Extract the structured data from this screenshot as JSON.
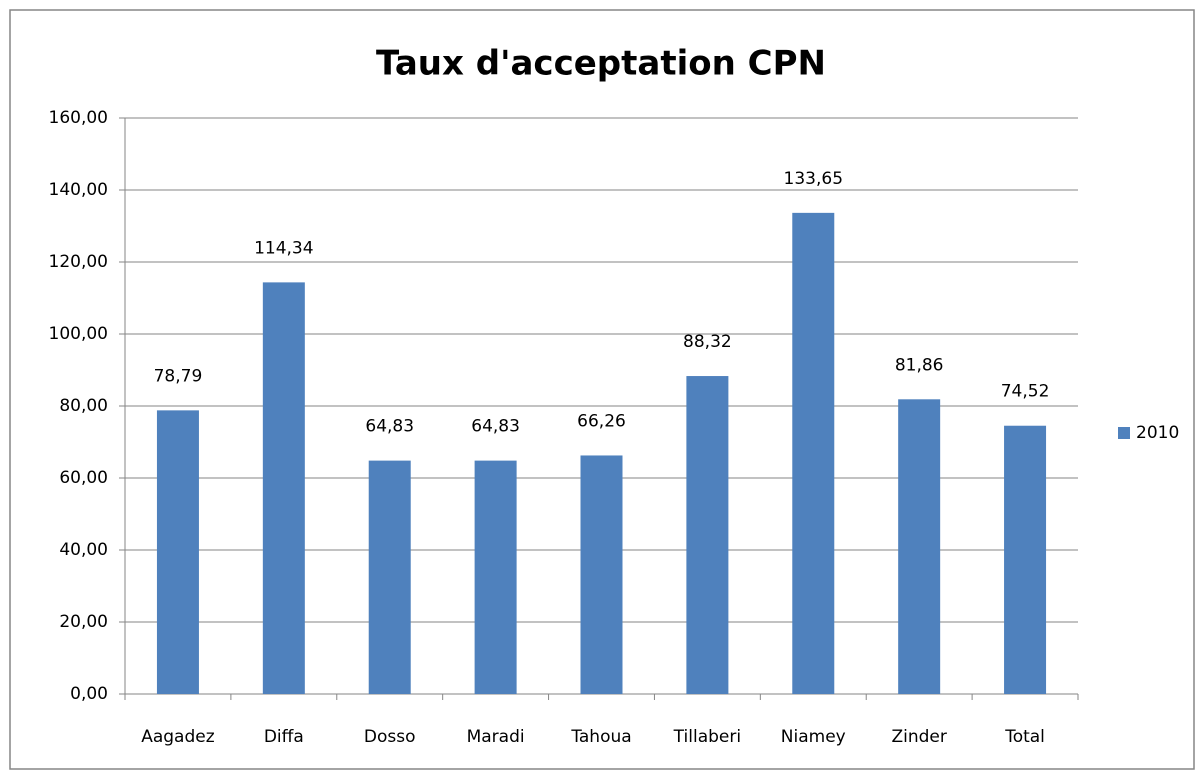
{
  "chart_data": {
    "type": "bar",
    "title": "Taux d'acceptation CPN",
    "categories": [
      "Aagadez",
      "Diffa",
      "Dosso",
      "Maradi",
      "Tahoua",
      "Tillaberi",
      "Niamey",
      "Zinder",
      "Total"
    ],
    "series": [
      {
        "name": "2010",
        "color": "#4f81bd",
        "values": [
          78.79,
          114.34,
          64.83,
          64.83,
          66.26,
          88.32,
          133.65,
          81.86,
          74.52
        ],
        "value_labels": [
          "78,79",
          "114,34",
          "64,83",
          "64,83",
          "66,26",
          "88,32",
          "133,65",
          "81,86",
          "74,52"
        ]
      }
    ],
    "ylim": [
      0,
      160
    ],
    "yticks": [
      {
        "value": 0,
        "label": "0,00"
      },
      {
        "value": 20,
        "label": "20,00"
      },
      {
        "value": 40,
        "label": "40,00"
      },
      {
        "value": 60,
        "label": "60,00"
      },
      {
        "value": 80,
        "label": "80,00"
      },
      {
        "value": 100,
        "label": "100,00"
      },
      {
        "value": 120,
        "label": "120,00"
      },
      {
        "value": 140,
        "label": "140,00"
      },
      {
        "value": 160,
        "label": "160,00"
      }
    ],
    "grid": true,
    "legend": "right"
  }
}
